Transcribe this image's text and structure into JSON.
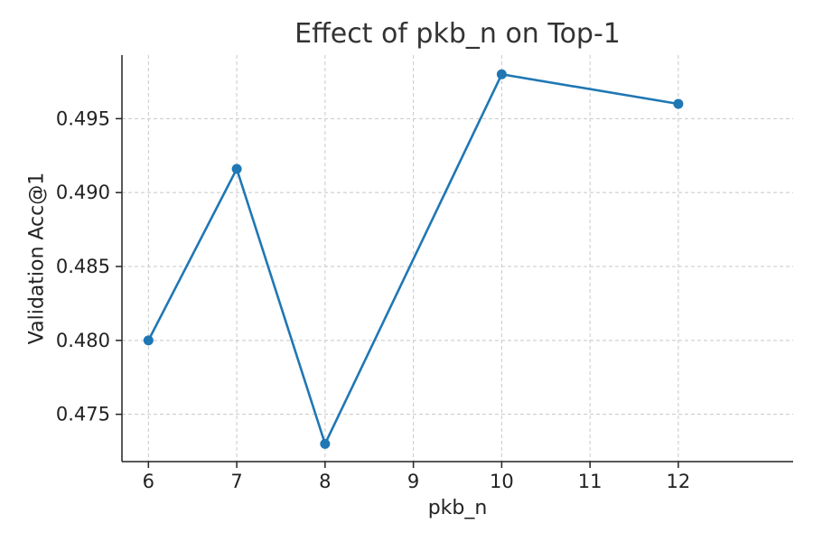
{
  "chart_data": {
    "type": "line",
    "title": "Effect of pkb_n on Top-1",
    "xlabel": "pkb_n",
    "ylabel": "Validation Acc@1",
    "x": [
      6,
      7,
      8,
      10,
      12
    ],
    "series": [
      {
        "values": [
          0.48,
          0.4916,
          0.473,
          0.498,
          0.496
        ],
        "color": "#1f77b4",
        "marker": "circle"
      }
    ],
    "xticks": [
      6,
      7,
      8,
      9,
      10,
      11,
      12
    ],
    "yticks": [
      0.475,
      0.48,
      0.485,
      0.49,
      0.495
    ],
    "xtick_labels": [
      "6",
      "7",
      "8",
      "9",
      "10",
      "11",
      "12"
    ],
    "ytick_labels": [
      "0.475",
      "0.480",
      "0.485",
      "0.490",
      "0.495"
    ],
    "xlim": [
      5.7,
      13.3
    ],
    "ylim": [
      0.4718,
      0.4993
    ],
    "grid": true,
    "grid_style": "dashed"
  }
}
